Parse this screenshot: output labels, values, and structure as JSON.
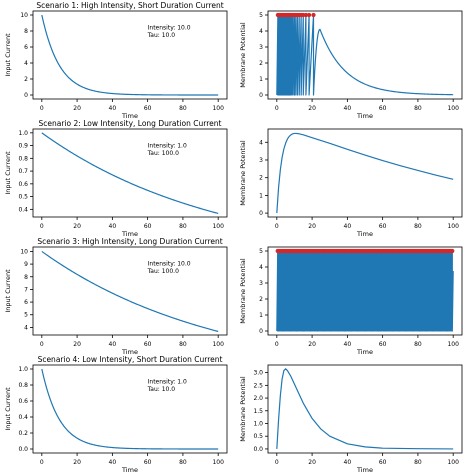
{
  "figure": {
    "background": "#ffffff",
    "line_color": "#1f77b4",
    "spike_color": "#d62728",
    "frame_color": "#000000"
  },
  "chart_data": [
    {
      "type": "line",
      "title": "Scenario 1: High Intensity, Short Duration Current",
      "xlabel": "Time",
      "ylabel": "Input Current",
      "xlim": [
        -5,
        105
      ],
      "ylim": [
        -0.5,
        10.5
      ],
      "xticks": [
        0,
        20,
        40,
        60,
        80,
        100
      ],
      "yticks": [
        0,
        2,
        4,
        6,
        8,
        10
      ],
      "annotation": [
        "Intensity: 10.0",
        "Tau: 10.0"
      ],
      "series": [
        {
          "function": "exp_decay",
          "amplitude": 10.0,
          "tau": 10.0,
          "x_start": 0,
          "x_end": 100
        }
      ],
      "grid": false
    },
    {
      "type": "line",
      "title": "",
      "xlabel": "Time",
      "ylabel": "Membrane Potential",
      "xlim": [
        -5,
        105
      ],
      "ylim": [
        -0.25,
        5.25
      ],
      "xticks": [
        0,
        20,
        40,
        60,
        80,
        100
      ],
      "yticks": [
        0,
        1,
        2,
        3,
        4,
        5
      ],
      "spike_times": [
        0.6,
        1.2,
        1.8,
        2.4,
        3.0,
        3.6,
        4.2,
        4.8,
        5.4,
        6.0,
        6.6,
        7.2,
        7.8,
        8.5,
        9.2,
        10.0,
        10.8,
        11.7,
        12.7,
        13.8,
        15.0,
        16.5,
        18.3,
        20.8
      ],
      "spike_value": 5,
      "post_spike_peak": {
        "time": 24.5,
        "value": 4.1
      },
      "post_spike_end": {
        "time": 100,
        "value": 0.02
      },
      "grid": false
    },
    {
      "type": "line",
      "title": "Scenario 2: Low Intensity, Long Duration Current",
      "xlabel": "Time",
      "ylabel": "Input Current",
      "xlim": [
        -5,
        105
      ],
      "ylim": [
        0.34,
        1.03
      ],
      "xticks": [
        0,
        20,
        40,
        60,
        80,
        100
      ],
      "yticks": [
        0.4,
        0.5,
        0.6,
        0.7,
        0.8,
        0.9,
        1.0
      ],
      "annotation": [
        "Intensity: 1.0",
        "Tau: 100.0"
      ],
      "series": [
        {
          "function": "exp_decay",
          "amplitude": 1.0,
          "tau": 100.0,
          "x_start": 0,
          "x_end": 100
        }
      ],
      "grid": false
    },
    {
      "type": "line",
      "title": "",
      "xlabel": "Time",
      "ylabel": "Membrane Potential",
      "xlim": [
        -5,
        105
      ],
      "ylim": [
        -0.22,
        4.75
      ],
      "xticks": [
        0,
        20,
        40,
        60,
        80,
        100
      ],
      "yticks": [
        0,
        1,
        2,
        3,
        4
      ],
      "series": [
        {
          "points": [
            [
              0,
              0
            ],
            [
              1,
              1.45
            ],
            [
              2,
              2.45
            ],
            [
              3,
              3.15
            ],
            [
              4,
              3.62
            ],
            [
              5,
              3.95
            ],
            [
              6,
              4.18
            ],
            [
              7,
              4.33
            ],
            [
              8,
              4.42
            ],
            [
              9,
              4.48
            ],
            [
              10,
              4.5
            ],
            [
              11,
              4.5
            ],
            [
              12,
              4.49
            ],
            [
              15,
              4.42
            ],
            [
              20,
              4.26
            ],
            [
              30,
              3.94
            ],
            [
              40,
              3.6
            ],
            [
              50,
              3.28
            ],
            [
              60,
              2.97
            ],
            [
              70,
              2.68
            ],
            [
              80,
              2.41
            ],
            [
              90,
              2.15
            ],
            [
              100,
              1.91
            ]
          ]
        }
      ],
      "grid": false
    },
    {
      "type": "line",
      "title": "Scenario 3: High Intensity, Long Duration Current",
      "xlabel": "Time",
      "ylabel": "Input Current",
      "xlim": [
        -5,
        105
      ],
      "ylim": [
        3.4,
        10.35
      ],
      "xticks": [
        0,
        20,
        40,
        60,
        80,
        100
      ],
      "yticks": [
        4,
        5,
        6,
        7,
        8,
        9,
        10
      ],
      "annotation": [
        "Intensity: 10.0",
        "Tau: 100.0"
      ],
      "series": [
        {
          "function": "exp_decay",
          "amplitude": 10.0,
          "tau": 100.0,
          "x_start": 0,
          "x_end": 100
        }
      ],
      "grid": false
    },
    {
      "type": "line",
      "title": "",
      "xlabel": "Time",
      "ylabel": "Membrane Potential",
      "xlim": [
        -5,
        105
      ],
      "ylim": [
        -0.25,
        5.25
      ],
      "xticks": [
        0,
        20,
        40,
        60,
        80,
        100
      ],
      "yticks": [
        0,
        1,
        2,
        3,
        4,
        5
      ],
      "spike_range": [
        0.5,
        99.5
      ],
      "spike_count": 150,
      "spike_value": 5,
      "grid": false
    },
    {
      "type": "line",
      "title": "Scenario 4: Low Intensity, Short Duration Current",
      "xlabel": "Time",
      "ylabel": "Input Current",
      "xlim": [
        -5,
        105
      ],
      "ylim": [
        -0.05,
        1.05
      ],
      "xticks": [
        0,
        20,
        40,
        60,
        80,
        100
      ],
      "yticks": [
        0.0,
        0.2,
        0.4,
        0.6,
        0.8,
        1.0
      ],
      "annotation": [
        "Intensity: 1.0",
        "Tau: 10.0"
      ],
      "series": [
        {
          "function": "exp_decay",
          "amplitude": 1.0,
          "tau": 10.0,
          "x_start": 0,
          "x_end": 100
        }
      ],
      "grid": false
    },
    {
      "type": "line",
      "title": "",
      "xlabel": "Time",
      "ylabel": "Membrane Potential",
      "xlim": [
        -5,
        105
      ],
      "ylim": [
        -0.16,
        3.3
      ],
      "xticks": [
        0,
        20,
        40,
        60,
        80,
        100
      ],
      "yticks": [
        0.0,
        0.5,
        1.0,
        1.5,
        2.0,
        2.5,
        3.0
      ],
      "series": [
        {
          "points": [
            [
              0,
              0
            ],
            [
              1,
              1.15
            ],
            [
              2,
              2.1
            ],
            [
              3,
              2.75
            ],
            [
              4,
              3.08
            ],
            [
              5,
              3.15
            ],
            [
              6,
              3.08
            ],
            [
              8,
              2.85
            ],
            [
              10,
              2.55
            ],
            [
              12,
              2.25
            ],
            [
              15,
              1.8
            ],
            [
              20,
              1.2
            ],
            [
              25,
              0.78
            ],
            [
              30,
              0.5
            ],
            [
              40,
              0.2
            ],
            [
              50,
              0.08
            ],
            [
              60,
              0.03
            ],
            [
              80,
              0.01
            ],
            [
              100,
              0.0
            ]
          ]
        }
      ],
      "grid": false
    }
  ]
}
